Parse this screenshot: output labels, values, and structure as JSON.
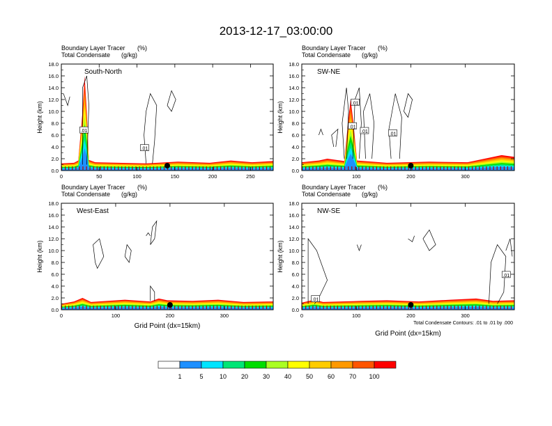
{
  "title": "2013-12-17_03:00:00",
  "panels": [
    {
      "name": "south-north",
      "subtitle1": "Boundary Layer Tracer",
      "subtitle1_unit": "(%)",
      "subtitle2": "Total Condensate",
      "subtitle2_unit": "(g/kg)",
      "label": "South-North",
      "ylabel": "Height (km)",
      "xlabel": "",
      "xmax": 280,
      "xticks": [
        "0",
        "50",
        "100",
        "150",
        "200",
        "250"
      ],
      "xtick_values": [
        0,
        50,
        100,
        150,
        200,
        250
      ],
      "yticks": [
        "0.0",
        "2.0",
        "4.0",
        "6.0",
        "8.0",
        "10.0",
        "12.0",
        "14.0",
        "16.0",
        "18.0"
      ],
      "ytick_values": [
        0,
        2,
        4,
        6,
        8,
        10,
        12,
        14,
        16,
        18
      ],
      "marker_x": 140,
      "contour_labels": [
        {
          "text": ".01",
          "x": 30,
          "y": 6.8
        },
        {
          "text": ".01",
          "x": 110,
          "y": 3.8
        }
      ]
    },
    {
      "name": "sw-ne",
      "subtitle1": "Boundary Layer Tracer",
      "subtitle1_unit": "(%)",
      "subtitle2": "Total Condensate",
      "subtitle2_unit": "(g/kg)",
      "label": "SW-NE",
      "ylabel": "Height (km)",
      "xlabel": "",
      "xmax": 390,
      "xticks": [
        "0",
        "100",
        "200",
        "300"
      ],
      "xtick_values": [
        0,
        100,
        200,
        300
      ],
      "yticks": [
        "0.0",
        "2.0",
        "4.0",
        "6.0",
        "8.0",
        "10.0",
        "12.0",
        "14.0",
        "16.0",
        "18.0"
      ],
      "ytick_values": [
        0,
        2,
        4,
        6,
        8,
        10,
        12,
        14,
        16,
        18
      ],
      "marker_x": 200,
      "contour_labels": [
        {
          "text": ".01",
          "x": 98,
          "y": 11.5
        },
        {
          "text": ".01",
          "x": 93,
          "y": 7.5
        },
        {
          "text": ".01",
          "x": 115,
          "y": 6.7
        },
        {
          "text": ".01",
          "x": 167,
          "y": 6.3
        }
      ]
    },
    {
      "name": "west-east",
      "subtitle1": "Boundary Layer Tracer",
      "subtitle1_unit": "(%)",
      "subtitle2": "Total Condensate",
      "subtitle2_unit": "(g/kg)",
      "label": "West-East",
      "ylabel": "Height (km)",
      "xlabel": "Grid Point (dx=15km)",
      "xmax": 390,
      "xticks": [
        "0",
        "100",
        "200",
        "300"
      ],
      "xtick_values": [
        0,
        100,
        200,
        300
      ],
      "yticks": [
        "0.0",
        "2.0",
        "4.0",
        "6.0",
        "8.0",
        "10.0",
        "12.0",
        "14.0",
        "16.0",
        "18.0"
      ],
      "ytick_values": [
        0,
        2,
        4,
        6,
        8,
        10,
        12,
        14,
        16,
        18
      ],
      "marker_x": 200,
      "contour_labels": []
    },
    {
      "name": "nw-se",
      "subtitle1": "Boundary Layer Tracer",
      "subtitle1_unit": "(%)",
      "subtitle2": "Total Condensate",
      "subtitle2_unit": "(g/kg)",
      "label": "NW-SE",
      "ylabel": "Height (km)",
      "xlabel": "Grid Point (dx=15km)",
      "xmax": 390,
      "xticks": [
        "0",
        "100",
        "200",
        "300"
      ],
      "xtick_values": [
        0,
        100,
        200,
        300
      ],
      "yticks": [
        "0.0",
        "2.0",
        "4.0",
        "6.0",
        "8.0",
        "10.0",
        "12.0",
        "14.0",
        "16.0",
        "18.0"
      ],
      "ytick_values": [
        0,
        2,
        4,
        6,
        8,
        10,
        12,
        14,
        16,
        18
      ],
      "marker_x": 200,
      "contour_labels": [
        {
          "text": ".01",
          "x": 25,
          "y": 1.8
        },
        {
          "text": ".01",
          "x": 375,
          "y": 5.9
        }
      ],
      "footnote": "Total Condensate Contours: .01 to .01 by .000"
    }
  ],
  "colorbar": {
    "labels": [
      "1",
      "5",
      "10",
      "20",
      "30",
      "40",
      "50",
      "60",
      "70",
      "100"
    ],
    "colors": [
      "#ffffff",
      "#1e90ff",
      "#00e5ff",
      "#00e676",
      "#00dd00",
      "#aaff22",
      "#ffff00",
      "#ffcc00",
      "#ff9900",
      "#ff5500",
      "#ff0000"
    ]
  },
  "chart_data": [
    {
      "type": "heatmap",
      "title": "2013-12-17_03:00:00",
      "panel": "South-North",
      "xlabel": "",
      "ylabel": "Height (km)",
      "xlim": [
        0,
        280
      ],
      "ylim": [
        0,
        18
      ],
      "fill": "Boundary Layer Tracer (%)",
      "contour": "Total Condensate (g/kg)",
      "contour_level": 0.01,
      "bl_top_km": [
        1.2,
        1.6,
        16.0,
        1.4,
        1.2,
        1.2,
        1.4,
        1.5,
        1.4,
        1.6
      ],
      "bl_top_x": [
        0,
        20,
        30,
        40,
        70,
        120,
        150,
        200,
        240,
        280
      ]
    },
    {
      "type": "heatmap",
      "panel": "SW-NE",
      "xlabel": "",
      "ylabel": "Height (km)",
      "xlim": [
        0,
        390
      ],
      "ylim": [
        0,
        18
      ],
      "fill": "Boundary Layer Tracer (%)",
      "contour": "Total Condensate (g/kg)",
      "contour_level": 0.01,
      "bl_top_km": [
        1.4,
        2.0,
        12.0,
        1.6,
        1.4,
        1.5,
        1.6,
        2.2,
        2.6
      ],
      "bl_top_x": [
        0,
        40,
        90,
        110,
        150,
        200,
        280,
        340,
        390
      ]
    },
    {
      "type": "heatmap",
      "panel": "West-East",
      "xlabel": "Grid Point (dx=15km)",
      "ylabel": "Height (km)",
      "xlim": [
        0,
        390
      ],
      "ylim": [
        0,
        18
      ],
      "fill": "Boundary Layer Tracer (%)",
      "contour": "Total Condensate (g/kg)",
      "contour_level": 0.01,
      "bl_top_km": [
        1.0,
        2.0,
        1.4,
        1.6,
        1.5,
        1.4,
        1.4,
        1.3
      ],
      "bl_top_x": [
        0,
        40,
        80,
        160,
        200,
        260,
        330,
        390
      ]
    },
    {
      "type": "heatmap",
      "panel": "NW-SE",
      "xlabel": "Grid Point (dx=15km)",
      "ylabel": "Height (km)",
      "xlim": [
        0,
        390
      ],
      "ylim": [
        0,
        18
      ],
      "fill": "Boundary Layer Tracer (%)",
      "contour": "Total Condensate (g/kg)",
      "contour_level": 0.01,
      "bl_top_km": [
        1.2,
        1.6,
        1.4,
        1.6,
        1.5,
        1.6,
        1.8,
        1.6
      ],
      "bl_top_x": [
        0,
        30,
        80,
        150,
        200,
        270,
        330,
        390
      ]
    }
  ]
}
